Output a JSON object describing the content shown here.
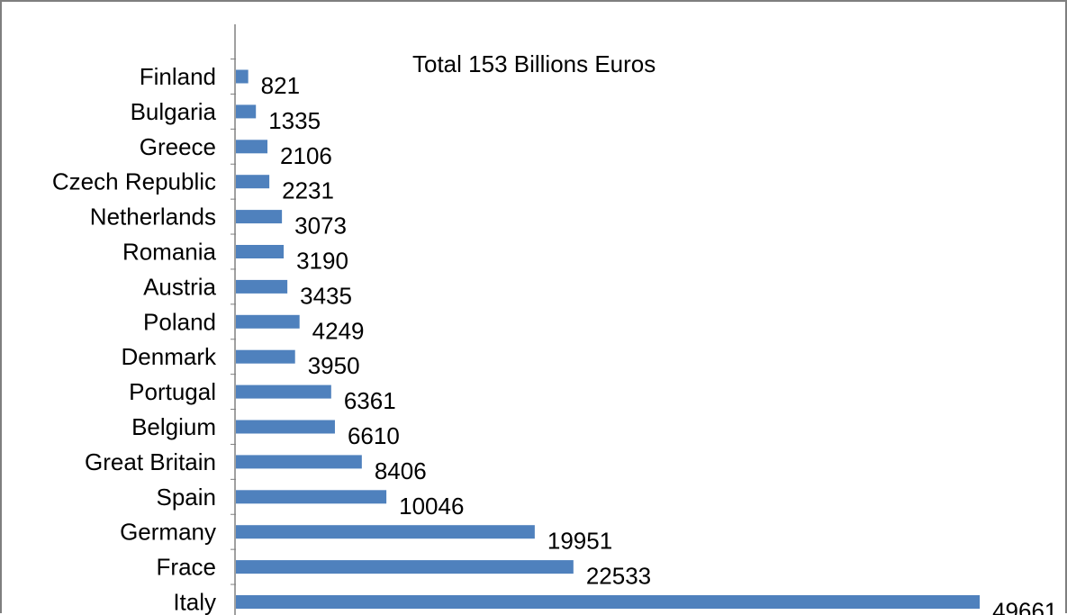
{
  "chart_data": {
    "type": "bar",
    "orientation": "horizontal",
    "title": "Total 153 Billions Euros",
    "categories": [
      "Finland",
      "Bulgaria",
      "Greece",
      "Czech Republic",
      "Netherlands",
      "Romania",
      "Austria",
      "Poland",
      "Denmark",
      "Portugal",
      "Belgium",
      "Great Britain",
      "Spain",
      "Germany",
      "Frace",
      "Italy"
    ],
    "values": [
      821,
      1335,
      2106,
      2231,
      3073,
      3190,
      3435,
      4249,
      3950,
      6361,
      6610,
      8406,
      10046,
      19951,
      22533,
      49661
    ],
    "data_labels": [
      "821",
      "1335",
      "2106",
      "2231",
      "3073",
      "3190",
      "3435",
      "4249",
      "3950",
      "6361",
      "6610",
      "8406",
      "10046",
      "19951",
      "22533",
      "49661"
    ],
    "xlim": [
      0,
      52000
    ],
    "grid": false,
    "legend": "none",
    "bar_color": "#4f81bd",
    "axis_color": "#808080"
  }
}
